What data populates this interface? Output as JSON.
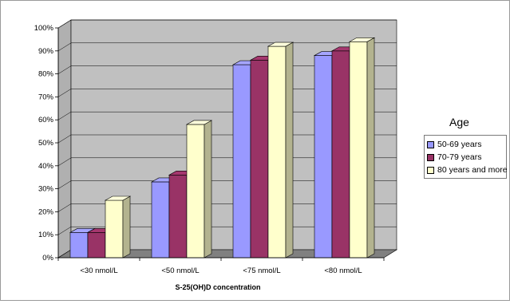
{
  "chart_data": {
    "type": "bar",
    "title": "",
    "xlabel": "S-25(OH)D concentration",
    "ylabel": "",
    "ylim": [
      0,
      100
    ],
    "y_ticks": [
      "0%",
      "10%",
      "20%",
      "30%",
      "40%",
      "50%",
      "60%",
      "70%",
      "80%",
      "90%",
      "100%"
    ],
    "categories": [
      "<30 nmol/L",
      "<50 nmol/L",
      "<75 nmol/L",
      "<80 nmol/L"
    ],
    "legend_title": "Age",
    "legend_position": "right",
    "grid": true,
    "series": [
      {
        "name": "50-69 years",
        "color": "#9999ff",
        "values": [
          11,
          33,
          84,
          88
        ]
      },
      {
        "name": "70-79 years",
        "color": "#993366",
        "values": [
          11,
          36,
          86,
          90
        ]
      },
      {
        "name": "80 years and more",
        "color": "#ffffcc",
        "values": [
          25,
          58,
          92,
          94
        ]
      }
    ],
    "colors": {
      "wall": "#c0c0c0",
      "floor": "#808080"
    }
  }
}
